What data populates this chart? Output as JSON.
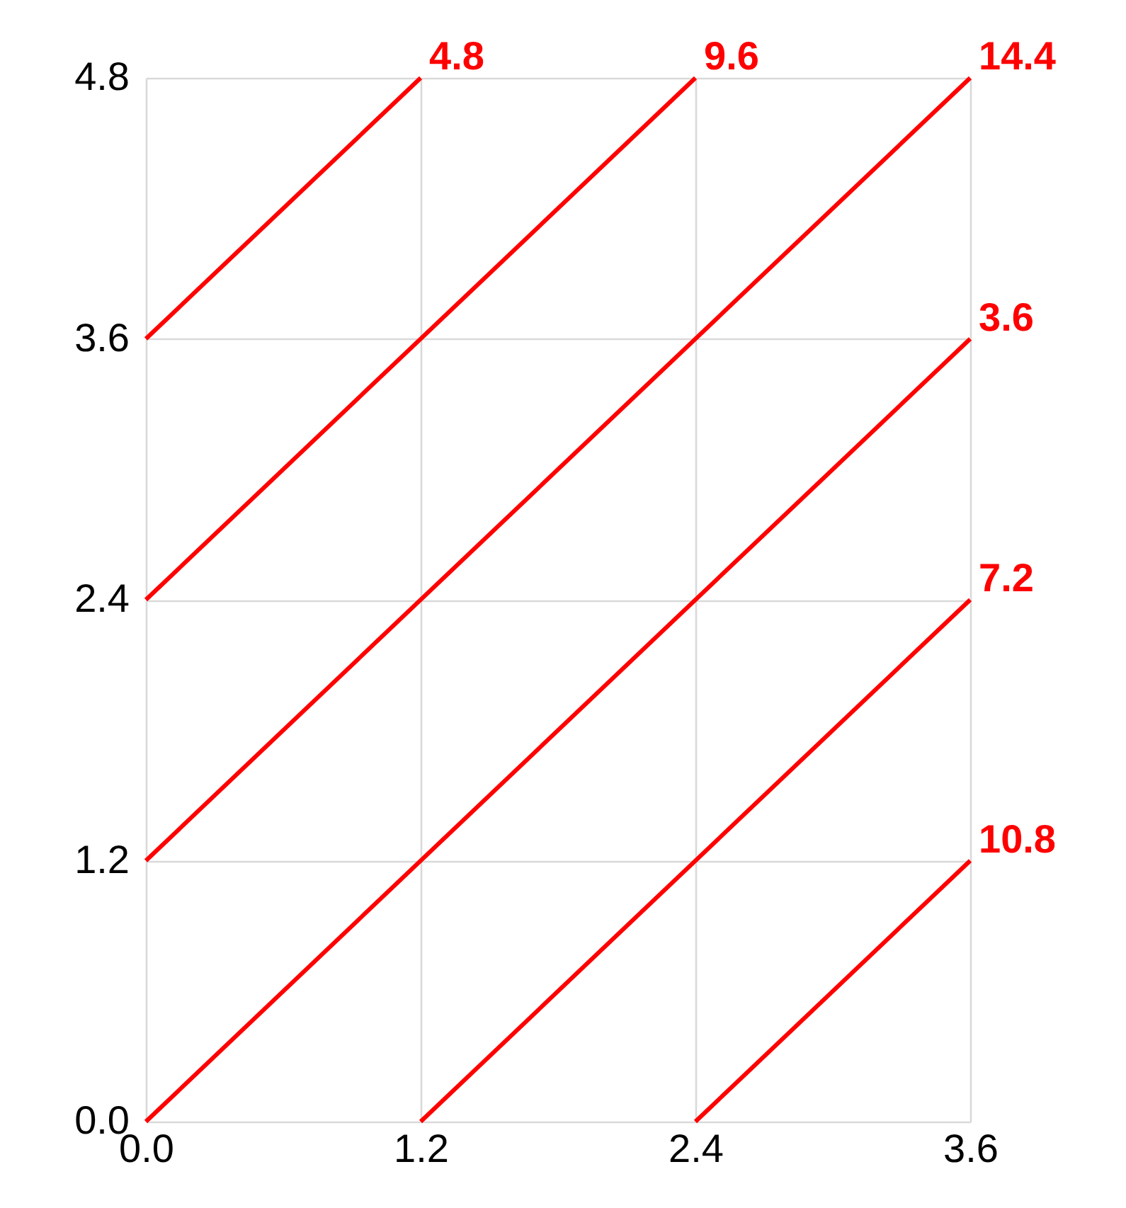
{
  "chart_data": {
    "type": "line",
    "xlim": [
      0,
      3.6
    ],
    "ylim": [
      0,
      4.8
    ],
    "xticks": [
      {
        "value": 0,
        "label": "0.0"
      },
      1.2,
      2.4,
      3.6
    ],
    "yticks": [
      {
        "value": 0,
        "label": "0.0"
      },
      1.2,
      2.4,
      3.6,
      4.8
    ],
    "grid": true,
    "legend": false,
    "series": [
      {
        "color": "#ff0000",
        "x": [
          0,
          1.2
        ],
        "values": [
          3.6,
          4.8
        ]
      },
      {
        "color": "#ff0000",
        "x": [
          0,
          2.4
        ],
        "values": [
          2.4,
          4.8
        ]
      },
      {
        "color": "#ff0000",
        "x": [
          0,
          3.6
        ],
        "values": [
          1.2,
          4.8
        ]
      },
      {
        "color": "#ff0000",
        "x": [
          0,
          3.6
        ],
        "values": [
          0,
          3.6
        ]
      },
      {
        "color": "#ff0000",
        "x": [
          1.2,
          3.6
        ],
        "values": [
          0,
          2.4
        ]
      },
      {
        "color": "#ff0000",
        "x": [
          2.4,
          3.6
        ],
        "values": [
          0,
          1.2
        ]
      }
    ],
    "annotations": [
      {
        "text": "4.8",
        "x": 1.2,
        "y": 4.8
      },
      {
        "text": "9.6",
        "x": 2.4,
        "y": 4.8
      },
      {
        "text": "14.4",
        "x": 3.6,
        "y": 4.8
      },
      {
        "text": "3.6",
        "x": 3.6,
        "y": 3.6
      },
      {
        "text": "7.2",
        "x": 3.6,
        "y": 2.4
      },
      {
        "text": "10.8",
        "x": 3.6,
        "y": 1.2
      }
    ]
  }
}
